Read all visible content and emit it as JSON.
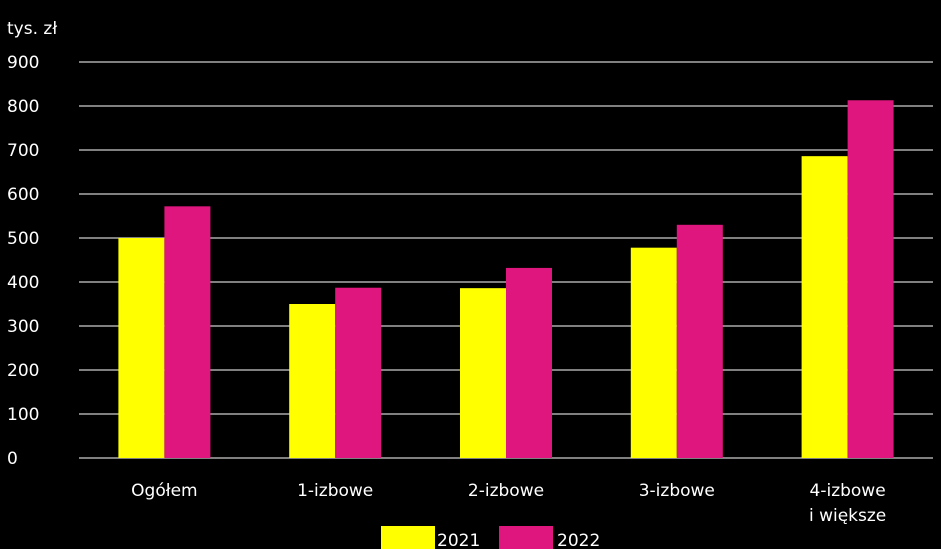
{
  "chart_data": {
    "type": "bar",
    "y_unit": "tys. zł",
    "categories": [
      [
        "Ogółem"
      ],
      [
        "1-izbowe"
      ],
      [
        "2-izbowe"
      ],
      [
        "3-izbowe"
      ],
      [
        "4-izbowe",
        "i większe"
      ]
    ],
    "series": [
      {
        "name": "2021",
        "color": "#ffff00",
        "values": [
          500,
          350,
          386,
          478,
          686
        ]
      },
      {
        "name": "2022",
        "color": "#e0167f",
        "values": [
          572,
          387,
          432,
          530,
          813
        ]
      }
    ],
    "ylim": [
      0,
      900
    ],
    "yticks": [
      0,
      100,
      200,
      300,
      400,
      500,
      600,
      700,
      800,
      900
    ],
    "grid": true,
    "legend_position": "bottom-center"
  }
}
